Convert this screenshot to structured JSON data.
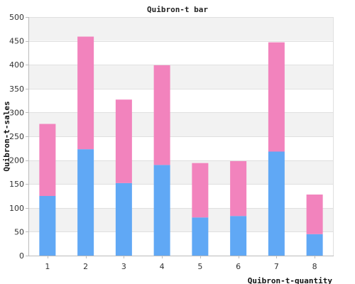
{
  "chart_data": {
    "type": "bar",
    "stacked": true,
    "title": "Quibron-t bar",
    "xlabel": "Quibron-t-quantity",
    "ylabel": "Quibron-t-sales",
    "categories": [
      "1",
      "2",
      "3",
      "4",
      "5",
      "6",
      "7",
      "8"
    ],
    "ylim": [
      0,
      500
    ],
    "yticks": [
      0,
      50,
      100,
      150,
      200,
      250,
      300,
      350,
      400,
      450,
      500
    ],
    "grid": "horizontal bands",
    "series": [
      {
        "values": [
          125,
          223,
          152,
          190,
          80,
          83,
          218,
          45
        ],
        "color": "#60a8f5"
      },
      {
        "values": [
          151,
          236,
          175,
          209,
          114,
          115,
          229,
          83
        ],
        "color": "#f283bd"
      }
    ]
  }
}
